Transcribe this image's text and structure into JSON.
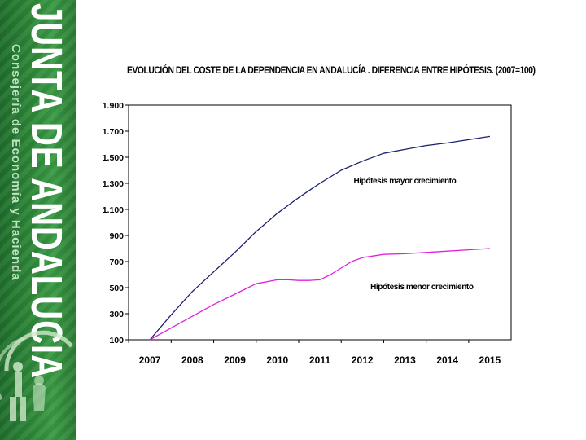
{
  "branding": {
    "org": "JUNTA DE ANDALUCIA",
    "dept": "Consejería de Economía y Hacienda",
    "emblem_icon": "andalucia-coat-of-arms-icon"
  },
  "colors": {
    "sidebar": "#2f8a3a",
    "series_high": "#1a1f6b",
    "series_low": "#e020e0"
  },
  "chart_data": {
    "type": "line",
    "title": "EVOLUCIÓN DEL COSTE DE LA DEPENDENCIA EN ANDALUCÍA . DIFERENCIA ENTRE HIPÓTESIS. (2007=100)",
    "xlabel": "",
    "ylabel": "",
    "ylim": [
      100,
      1900
    ],
    "yticks": [
      100,
      300,
      500,
      700,
      900,
      1100,
      1300,
      1500,
      1700,
      1900
    ],
    "ytick_labels": [
      "100",
      "300",
      "500",
      "700",
      "900",
      "1.100",
      "1.300",
      "1.500",
      "1.700",
      "1.900"
    ],
    "categories": [
      "2007",
      "2008",
      "2009",
      "2010",
      "2011",
      "2012",
      "2013",
      "2014",
      "2015"
    ],
    "series": [
      {
        "name": "Hipótesis mayor crecimiento",
        "color": "#1a1f6b",
        "x": [
          2007,
          2007.5,
          2008,
          2008.5,
          2009,
          2009.5,
          2010,
          2010.5,
          2011,
          2011.5,
          2012,
          2012.5,
          2013,
          2013.5,
          2014,
          2014.5,
          2015
        ],
        "values": [
          100,
          290,
          470,
          620,
          770,
          930,
          1070,
          1190,
          1300,
          1400,
          1470,
          1530,
          1560,
          1590,
          1610,
          1635,
          1660
        ]
      },
      {
        "name": "Hipótesis menor crecimiento",
        "color": "#e020e0",
        "x": [
          2007,
          2007.5,
          2008,
          2008.5,
          2009,
          2009.5,
          2010,
          2010.25,
          2010.5,
          2010.75,
          2011,
          2011.25,
          2011.5,
          2011.75,
          2012,
          2012.5,
          2013,
          2013.5,
          2014,
          2014.5,
          2015
        ],
        "values": [
          100,
          190,
          280,
          370,
          450,
          530,
          560,
          560,
          555,
          555,
          560,
          600,
          650,
          700,
          730,
          755,
          760,
          770,
          780,
          790,
          800
        ]
      }
    ],
    "annotations": [
      {
        "text": "Hipótesis mayor crecimiento",
        "x": 2013,
        "y": 1300
      },
      {
        "text": "Hipótesis menor crecimiento",
        "x": 2013.4,
        "y": 488
      }
    ]
  }
}
